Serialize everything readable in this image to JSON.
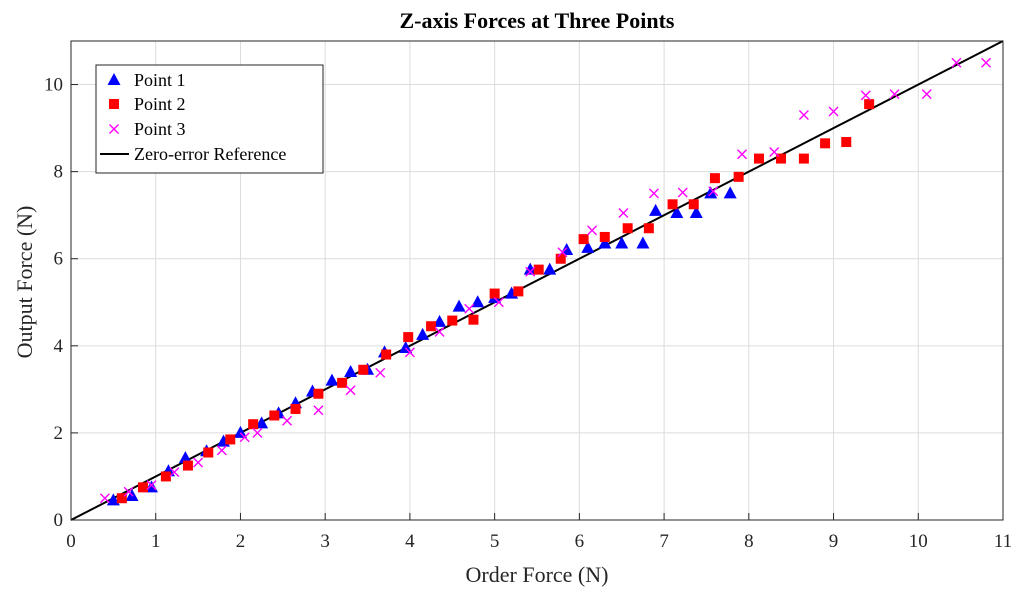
{
  "chart_data": {
    "type": "scatter",
    "title": "Z-axis Forces at Three Points",
    "xlabel": "Order Force (N)",
    "ylabel": "Output Force (N)",
    "xlim": [
      0,
      11
    ],
    "ylim": [
      0,
      11
    ],
    "xticks": [
      0,
      1,
      2,
      3,
      4,
      5,
      6,
      7,
      8,
      9,
      10,
      11
    ],
    "yticks": [
      0,
      2,
      4,
      6,
      8,
      10
    ],
    "grid": true,
    "legend_position": "top-left",
    "series": [
      {
        "name": "Point 1",
        "marker": "triangle",
        "color": "#0000ff",
        "points": [
          [
            0.5,
            0.45
          ],
          [
            0.72,
            0.55
          ],
          [
            0.95,
            0.75
          ],
          [
            1.15,
            1.12
          ],
          [
            1.35,
            1.42
          ],
          [
            1.6,
            1.58
          ],
          [
            1.8,
            1.8
          ],
          [
            2.0,
            2.0
          ],
          [
            2.25,
            2.22
          ],
          [
            2.45,
            2.45
          ],
          [
            2.65,
            2.68
          ],
          [
            2.85,
            2.95
          ],
          [
            3.08,
            3.2
          ],
          [
            3.3,
            3.4
          ],
          [
            3.5,
            3.45
          ],
          [
            3.7,
            3.85
          ],
          [
            3.95,
            3.95
          ],
          [
            4.15,
            4.25
          ],
          [
            4.35,
            4.55
          ],
          [
            4.58,
            4.9
          ],
          [
            4.8,
            5.0
          ],
          [
            5.0,
            5.1
          ],
          [
            5.2,
            5.2
          ],
          [
            5.42,
            5.75
          ],
          [
            5.65,
            5.75
          ],
          [
            5.85,
            6.2
          ],
          [
            6.1,
            6.25
          ],
          [
            6.3,
            6.35
          ],
          [
            6.5,
            6.35
          ],
          [
            6.75,
            6.35
          ],
          [
            6.9,
            7.1
          ],
          [
            7.15,
            7.05
          ],
          [
            7.38,
            7.05
          ],
          [
            7.55,
            7.5
          ],
          [
            7.78,
            7.5
          ]
        ]
      },
      {
        "name": "Point 2",
        "marker": "square",
        "color": "#ff0000",
        "points": [
          [
            0.6,
            0.5
          ],
          [
            0.85,
            0.75
          ],
          [
            1.12,
            1.0
          ],
          [
            1.38,
            1.25
          ],
          [
            1.62,
            1.55
          ],
          [
            1.88,
            1.85
          ],
          [
            2.15,
            2.2
          ],
          [
            2.4,
            2.4
          ],
          [
            2.65,
            2.55
          ],
          [
            2.92,
            2.9
          ],
          [
            3.2,
            3.15
          ],
          [
            3.45,
            3.45
          ],
          [
            3.72,
            3.8
          ],
          [
            3.98,
            4.2
          ],
          [
            4.25,
            4.45
          ],
          [
            4.5,
            4.58
          ],
          [
            4.75,
            4.6
          ],
          [
            5.0,
            5.2
          ],
          [
            5.28,
            5.25
          ],
          [
            5.52,
            5.75
          ],
          [
            5.78,
            6.0
          ],
          [
            6.05,
            6.45
          ],
          [
            6.3,
            6.5
          ],
          [
            6.57,
            6.7
          ],
          [
            6.82,
            6.7
          ],
          [
            7.1,
            7.25
          ],
          [
            7.35,
            7.25
          ],
          [
            7.6,
            7.85
          ],
          [
            7.88,
            7.88
          ],
          [
            8.12,
            8.3
          ],
          [
            8.38,
            8.3
          ],
          [
            8.65,
            8.3
          ],
          [
            8.9,
            8.65
          ],
          [
            9.15,
            8.68
          ],
          [
            9.42,
            9.55
          ]
        ]
      },
      {
        "name": "Point 3",
        "marker": "x",
        "color": "#ff00ff",
        "points": [
          [
            0.4,
            0.5
          ],
          [
            0.68,
            0.65
          ],
          [
            0.95,
            0.8
          ],
          [
            1.22,
            1.1
          ],
          [
            1.5,
            1.32
          ],
          [
            1.78,
            1.6
          ],
          [
            2.05,
            1.9
          ],
          [
            2.2,
            2.0
          ],
          [
            2.55,
            2.28
          ],
          [
            2.92,
            2.52
          ],
          [
            3.3,
            2.98
          ],
          [
            3.65,
            3.38
          ],
          [
            4.0,
            3.85
          ],
          [
            4.35,
            4.32
          ],
          [
            4.7,
            4.85
          ],
          [
            5.05,
            5.0
          ],
          [
            5.42,
            5.7
          ],
          [
            5.8,
            6.15
          ],
          [
            6.15,
            6.65
          ],
          [
            6.52,
            7.05
          ],
          [
            6.88,
            7.5
          ],
          [
            7.22,
            7.52
          ],
          [
            7.58,
            7.55
          ],
          [
            7.92,
            8.4
          ],
          [
            8.3,
            8.45
          ],
          [
            8.65,
            9.3
          ],
          [
            9.0,
            9.38
          ],
          [
            9.38,
            9.75
          ],
          [
            9.72,
            9.78
          ],
          [
            10.1,
            9.78
          ],
          [
            10.45,
            10.5
          ],
          [
            10.8,
            10.5
          ]
        ]
      },
      {
        "name": "Zero-error Reference",
        "marker": "line",
        "color": "#000000",
        "points": [
          [
            0,
            0
          ],
          [
            11,
            11
          ]
        ]
      }
    ]
  }
}
